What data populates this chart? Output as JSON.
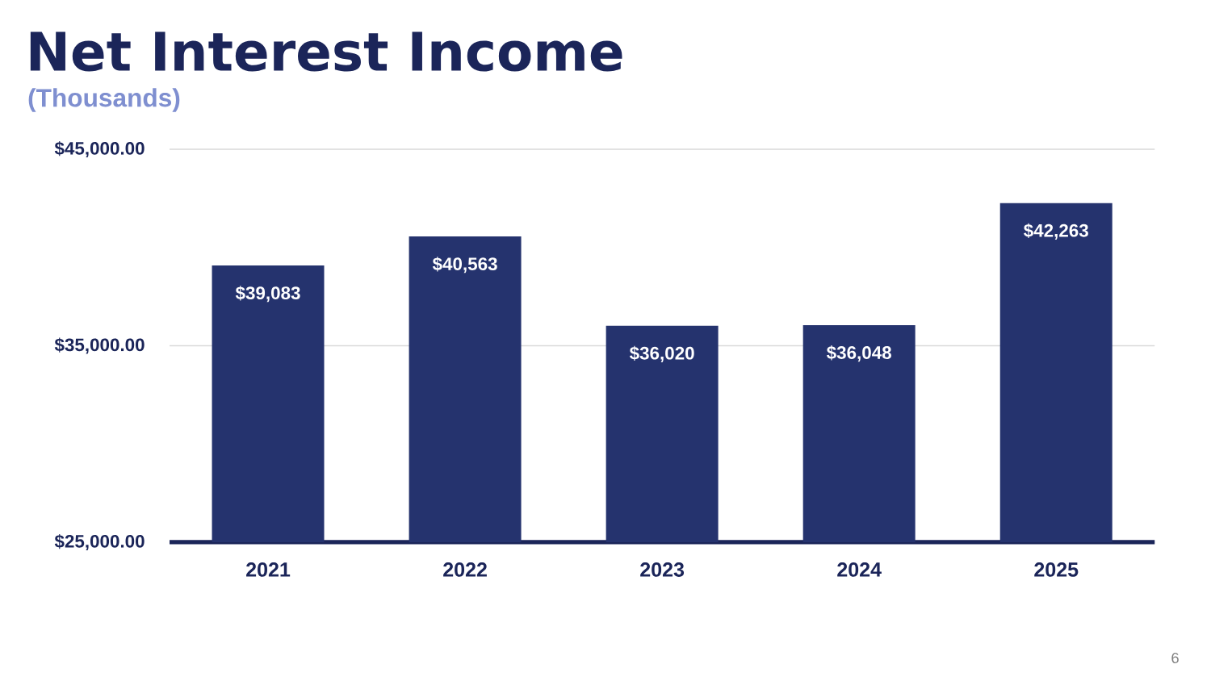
{
  "chart_data": {
    "type": "bar",
    "title": "Net Interest Income",
    "subtitle": "(Thousands)",
    "categories": [
      "2021",
      "2022",
      "2023",
      "2024",
      "2025"
    ],
    "values": [
      39083,
      40563,
      36020,
      36048,
      42263
    ],
    "value_labels": [
      "$39,083",
      "$40,563",
      "$36,020",
      "$36,048",
      "$42,263"
    ],
    "color": "#25336e",
    "ylim": [
      25000,
      45000
    ],
    "yticks": [
      {
        "value": 25000,
        "label": "$25,000.00"
      },
      {
        "value": 35000,
        "label": "$35,000.00"
      },
      {
        "value": 45000,
        "label": "$45,000.00"
      }
    ],
    "grid": "y",
    "annotations": [
      "6"
    ]
  }
}
